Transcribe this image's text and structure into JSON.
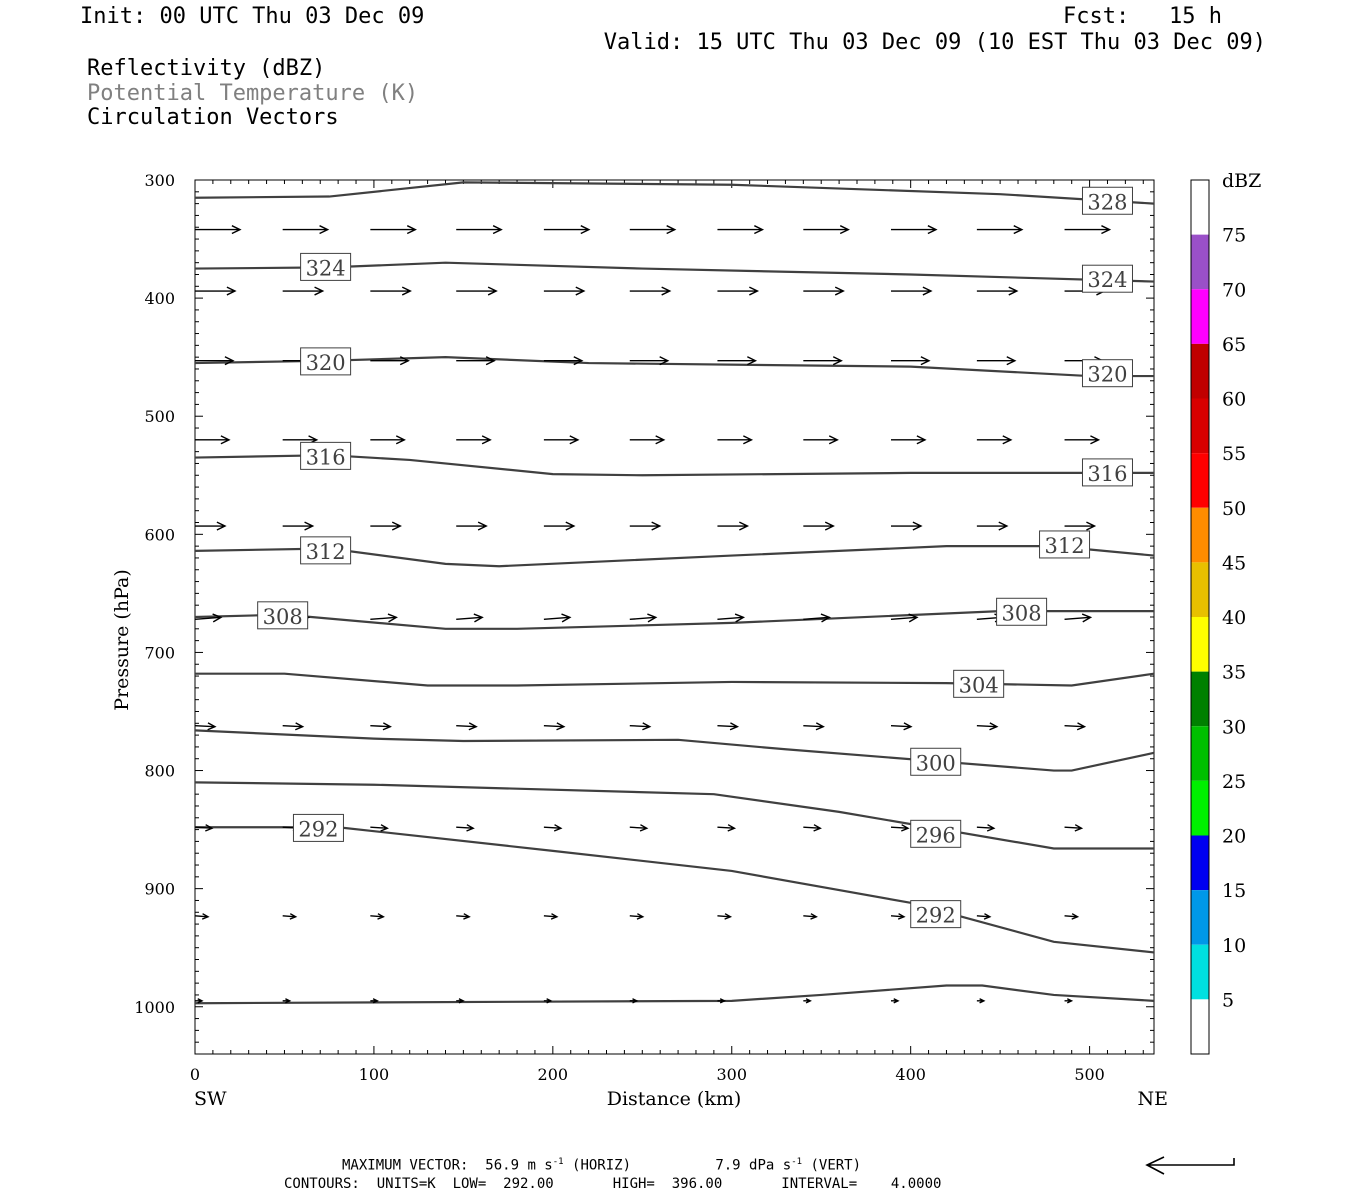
{
  "header": {
    "init": "Init: 00 UTC Thu 03 Dec 09",
    "fcst": "Fcst:   15 h",
    "valid": "Valid: 15 UTC Thu 03 Dec 09 (10 EST Thu 03 Dec 09)"
  },
  "fields": [
    {
      "label": "Reflectivity (dBZ)",
      "color": "#000000"
    },
    {
      "label": "Potential Temperature (K)",
      "color": "#808080"
    },
    {
      "label": "Circulation Vectors",
      "color": "#000000"
    }
  ],
  "footer": {
    "max_vector_prefix": "MAXIMUM VECTOR:",
    "horiz_value": "56.9 m s",
    "horiz_exp": "-1",
    "horiz_suffix": "(HORIZ)",
    "vert_value": "7.9 dPa s",
    "vert_exp": "-1",
    "vert_suffix": "(VERT)",
    "contours": "CONTOURS:  UNITS=K  LOW=  292.00       HIGH=  396.00       INTERVAL=    4.0000"
  },
  "chart_data": {
    "type": "line",
    "xlabel": "Distance (km)",
    "ylabel": "Pressure (hPa)",
    "xlim": [
      0,
      536
    ],
    "ylim": [
      1040,
      300
    ],
    "x_ticks": [
      0,
      100,
      200,
      300,
      400,
      500
    ],
    "y_ticks": [
      300,
      400,
      500,
      600,
      700,
      800,
      900,
      1000
    ],
    "x_end_labels": {
      "left": "SW",
      "right": "NE"
    },
    "contour_color": "#404040",
    "contours": [
      {
        "value": "328",
        "points": [
          [
            0,
            315
          ],
          [
            75,
            314
          ],
          [
            150,
            302
          ],
          [
            300,
            304
          ],
          [
            450,
            312
          ],
          [
            536,
            320
          ]
        ],
        "labels": [
          [
            510,
            318
          ]
        ]
      },
      {
        "value": "324",
        "points": [
          [
            0,
            375
          ],
          [
            75,
            374
          ],
          [
            140,
            370
          ],
          [
            250,
            375
          ],
          [
            400,
            380
          ],
          [
            536,
            386
          ]
        ],
        "labels": [
          [
            73,
            374
          ],
          [
            510,
            384
          ]
        ]
      },
      {
        "value": "320",
        "points": [
          [
            0,
            455
          ],
          [
            75,
            453
          ],
          [
            140,
            450
          ],
          [
            220,
            455
          ],
          [
            400,
            458
          ],
          [
            500,
            466
          ],
          [
            536,
            466
          ]
        ],
        "labels": [
          [
            73,
            454
          ],
          [
            510,
            464
          ]
        ]
      },
      {
        "value": "316",
        "points": [
          [
            0,
            535
          ],
          [
            75,
            533
          ],
          [
            120,
            537
          ],
          [
            200,
            549
          ],
          [
            250,
            550
          ],
          [
            400,
            548
          ],
          [
            536,
            548
          ]
        ],
        "labels": [
          [
            73,
            534
          ],
          [
            510,
            548
          ]
        ]
      },
      {
        "value": "312",
        "points": [
          [
            0,
            614
          ],
          [
            75,
            612
          ],
          [
            140,
            625
          ],
          [
            170,
            627
          ],
          [
            300,
            618
          ],
          [
            420,
            610
          ],
          [
            480,
            610
          ],
          [
            536,
            618
          ]
        ],
        "labels": [
          [
            73,
            614
          ],
          [
            486,
            609
          ]
        ]
      },
      {
        "value": "308",
        "points": [
          [
            0,
            670
          ],
          [
            50,
            668
          ],
          [
            140,
            680
          ],
          [
            180,
            680
          ],
          [
            300,
            675
          ],
          [
            450,
            665
          ],
          [
            536,
            665
          ]
        ],
        "labels": [
          [
            49,
            669
          ],
          [
            462,
            666
          ]
        ]
      },
      {
        "value": "304",
        "points": [
          [
            0,
            718
          ],
          [
            50,
            718
          ],
          [
            130,
            728
          ],
          [
            180,
            728
          ],
          [
            300,
            725
          ],
          [
            420,
            726
          ],
          [
            490,
            728
          ],
          [
            536,
            718
          ]
        ],
        "labels": [
          [
            438,
            727
          ]
        ]
      },
      {
        "value": "300",
        "points": [
          [
            0,
            766
          ],
          [
            100,
            773
          ],
          [
            150,
            775
          ],
          [
            270,
            774
          ],
          [
            330,
            782
          ],
          [
            480,
            800
          ],
          [
            490,
            800
          ],
          [
            536,
            785
          ]
        ],
        "labels": [
          [
            414,
            793
          ]
        ]
      },
      {
        "value": "296",
        "points": [
          [
            0,
            810
          ],
          [
            100,
            812
          ],
          [
            290,
            820
          ],
          [
            360,
            835
          ],
          [
            480,
            866
          ],
          [
            536,
            866
          ]
        ],
        "labels": [
          [
            414,
            854
          ]
        ]
      },
      {
        "value": "292",
        "points": [
          [
            0,
            848
          ],
          [
            80,
            848
          ],
          [
            200,
            868
          ],
          [
            300,
            885
          ],
          [
            400,
            912
          ],
          [
            480,
            945
          ],
          [
            536,
            954
          ]
        ],
        "labels": [
          [
            69,
            849
          ],
          [
            414,
            922
          ]
        ]
      },
      {
        "value": "",
        "points": [
          [
            0,
            997
          ],
          [
            300,
            995
          ],
          [
            350,
            990
          ],
          [
            420,
            982
          ],
          [
            440,
            982
          ],
          [
            480,
            990
          ],
          [
            536,
            995
          ]
        ],
        "labels": []
      }
    ],
    "colorbar": {
      "unit": "dBZ",
      "ticks": [
        "5",
        "10",
        "15",
        "20",
        "25",
        "30",
        "35",
        "40",
        "45",
        "50",
        "55",
        "60",
        "65",
        "70",
        "75"
      ],
      "colors": [
        "#ffffff",
        "#00e0e0",
        "#0098e8",
        "#0000f0",
        "#00f000",
        "#00c000",
        "#008000",
        "#ffff00",
        "#e8c000",
        "#ff8c00",
        "#ff0000",
        "#d80000",
        "#c00000",
        "#ff00ff",
        "#9a50c8",
        "#ffffff"
      ]
    },
    "vector_rows": [
      {
        "p": 342,
        "dx": 45,
        "dy": 0
      },
      {
        "p": 394,
        "dx": 40,
        "dy": 0
      },
      {
        "p": 453,
        "dx": 38,
        "dy": 0
      },
      {
        "p": 520,
        "dx": 34,
        "dy": 0
      },
      {
        "p": 593,
        "dx": 30,
        "dy": 0
      },
      {
        "p": 672,
        "dx": 26,
        "dy": -2
      },
      {
        "p": 762,
        "dx": 20,
        "dy": 1
      },
      {
        "p": 848,
        "dx": 17,
        "dy": 1
      },
      {
        "p": 923,
        "dx": 13,
        "dy": 1
      },
      {
        "p": 995,
        "dx": 7,
        "dy": 0
      }
    ],
    "vector_x": [
      0,
      49,
      98,
      146,
      195,
      243,
      292,
      340,
      389,
      437,
      486
    ],
    "reference_vector_dir": "left"
  }
}
